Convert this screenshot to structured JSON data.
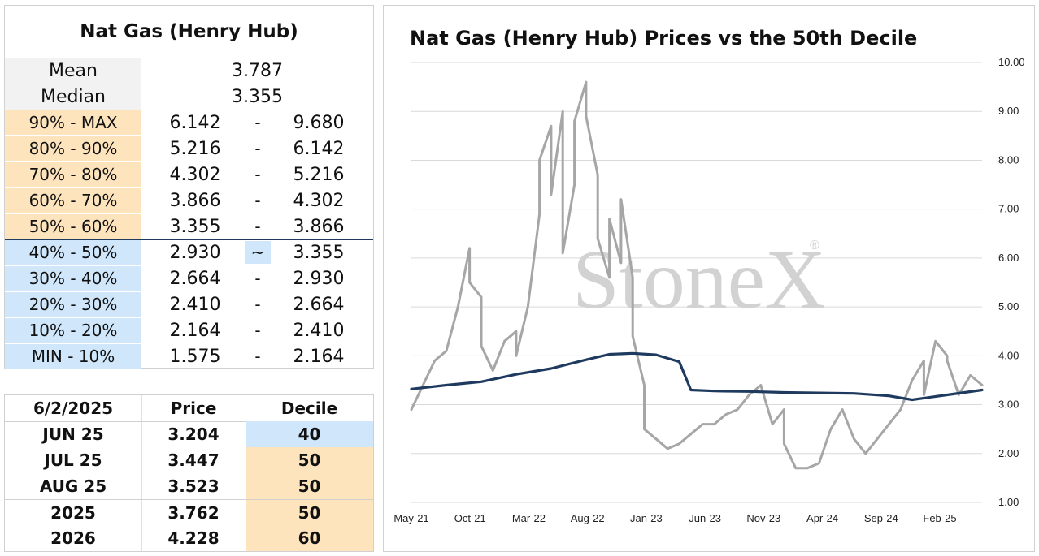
{
  "decile_table": {
    "title": "Nat Gas (Henry Hub)",
    "mean_label": "Mean",
    "mean_value": "3.787",
    "median_label": "Median",
    "median_value": "3.355",
    "bands": [
      {
        "label": "90% - MAX",
        "low": "6.142",
        "sep": "-",
        "high": "9.680",
        "color": "orange"
      },
      {
        "label": "80% - 90%",
        "low": "5.216",
        "sep": "-",
        "high": "6.142",
        "color": "orange"
      },
      {
        "label": "70% - 80%",
        "low": "4.302",
        "sep": "-",
        "high": "5.216",
        "color": "orange"
      },
      {
        "label": "60% - 70%",
        "low": "3.866",
        "sep": "-",
        "high": "4.302",
        "color": "orange"
      },
      {
        "label": "50% - 60%",
        "low": "3.355",
        "sep": "-",
        "high": "3.866",
        "color": "orange"
      },
      {
        "label": "40% - 50%",
        "low": "2.930",
        "sep": "~",
        "high": "3.355",
        "color": "blue",
        "current": true
      },
      {
        "label": "30% - 40%",
        "low": "2.664",
        "sep": "-",
        "high": "2.930",
        "color": "blue"
      },
      {
        "label": "20% - 30%",
        "low": "2.410",
        "sep": "-",
        "high": "2.664",
        "color": "blue"
      },
      {
        "label": "10% - 20%",
        "low": "2.164",
        "sep": "-",
        "high": "2.410",
        "color": "blue"
      },
      {
        "label": "MIN - 10%",
        "low": "1.575",
        "sep": "-",
        "high": "2.164",
        "color": "blue"
      }
    ]
  },
  "price_table": {
    "headers": [
      "6/2/2025",
      "Price",
      "Decile"
    ],
    "rows": [
      {
        "contract": "JUN 25",
        "price": "3.204",
        "decile": "40",
        "color": "blue"
      },
      {
        "contract": "JUL 25",
        "price": "3.447",
        "decile": "50",
        "color": "orange"
      },
      {
        "contract": "AUG 25",
        "price": "3.523",
        "decile": "50",
        "color": "orange"
      },
      {
        "contract": "2025",
        "price": "3.762",
        "decile": "50",
        "color": "orange"
      },
      {
        "contract": "2026",
        "price": "4.228",
        "decile": "60",
        "color": "orange"
      }
    ]
  },
  "watermark": {
    "text": "StoneX",
    "mark": "®"
  },
  "colors": {
    "orange": "#fde4bd",
    "blue": "#cfe6fb",
    "price_line": "#a6a6a6",
    "decile_line": "#1f3a5f",
    "gridline": "#d9d9d9"
  },
  "chart_data": {
    "type": "line",
    "title": "Nat Gas (Henry Hub) Prices vs the 50th Decile",
    "x_tick_labels": [
      "May-21",
      "Oct-21",
      "Mar-22",
      "Aug-22",
      "Jan-23",
      "Jun-23",
      "Nov-23",
      "Apr-24",
      "Sep-24",
      "Feb-25"
    ],
    "x_range": [
      "2021-05",
      "2025-06"
    ],
    "ylim": [
      1.0,
      10.0
    ],
    "y_ticks": [
      "1.00",
      "2.00",
      "3.00",
      "4.00",
      "5.00",
      "6.00",
      "7.00",
      "8.00",
      "9.00",
      "10.00"
    ],
    "y_axis_side": "right",
    "grid": "horizontal",
    "series": [
      {
        "key": "price",
        "color": "#a6a6a6",
        "x": [
          "2021-05",
          "2021-06",
          "2021-07",
          "2021-08",
          "2021-09",
          "2021-10",
          "2021-10",
          "2021-11",
          "2021-11",
          "2021-12",
          "2022-01",
          "2022-02",
          "2022-02",
          "2022-03",
          "2022-04",
          "2022-04",
          "2022-05",
          "2022-05",
          "2022-06",
          "2022-06",
          "2022-07",
          "2022-07",
          "2022-08",
          "2022-08",
          "2022-09",
          "2022-09",
          "2022-10",
          "2022-10",
          "2022-11",
          "2022-11",
          "2022-12",
          "2022-12",
          "2023-01",
          "2023-01",
          "2023-02",
          "2023-03",
          "2023-04",
          "2023-05",
          "2023-06",
          "2023-07",
          "2023-08",
          "2023-09",
          "2023-10",
          "2023-11",
          "2023-12",
          "2024-01",
          "2024-01",
          "2024-02",
          "2024-03",
          "2024-04",
          "2024-05",
          "2024-06",
          "2024-07",
          "2024-08",
          "2024-09",
          "2024-10",
          "2024-11",
          "2024-12",
          "2025-01",
          "2025-01",
          "2025-02",
          "2025-03",
          "2025-03",
          "2025-04",
          "2025-05",
          "2025-06"
        ],
        "y": [
          2.9,
          3.4,
          3.9,
          4.1,
          5.0,
          6.2,
          5.5,
          5.2,
          4.2,
          3.7,
          4.3,
          4.5,
          4.0,
          5.0,
          6.9,
          8.0,
          8.7,
          7.3,
          9.0,
          6.1,
          7.5,
          8.8,
          9.6,
          8.9,
          7.7,
          6.4,
          5.6,
          6.8,
          5.9,
          7.2,
          5.6,
          4.4,
          3.4,
          2.5,
          2.3,
          2.1,
          2.2,
          2.4,
          2.6,
          2.6,
          2.8,
          2.9,
          3.2,
          3.4,
          2.6,
          2.9,
          2.2,
          1.7,
          1.7,
          1.8,
          2.5,
          2.9,
          2.3,
          2.0,
          2.3,
          2.6,
          2.9,
          3.5,
          3.9,
          3.2,
          4.3,
          4.0,
          3.9,
          3.2,
          3.6,
          3.4
        ]
      },
      {
        "key": "50th_decile",
        "color": "#1f3a5f",
        "x": [
          "2021-05",
          "2021-08",
          "2021-11",
          "2022-02",
          "2022-05",
          "2022-08",
          "2022-10",
          "2022-12",
          "2023-02",
          "2023-04",
          "2023-05",
          "2023-07",
          "2023-10",
          "2024-01",
          "2024-04",
          "2024-07",
          "2024-10",
          "2024-12",
          "2025-03",
          "2025-06"
        ],
        "y": [
          3.32,
          3.4,
          3.47,
          3.62,
          3.74,
          3.92,
          4.03,
          4.05,
          4.02,
          3.88,
          3.3,
          3.28,
          3.27,
          3.25,
          3.24,
          3.23,
          3.18,
          3.1,
          3.2,
          3.3
        ]
      }
    ]
  }
}
